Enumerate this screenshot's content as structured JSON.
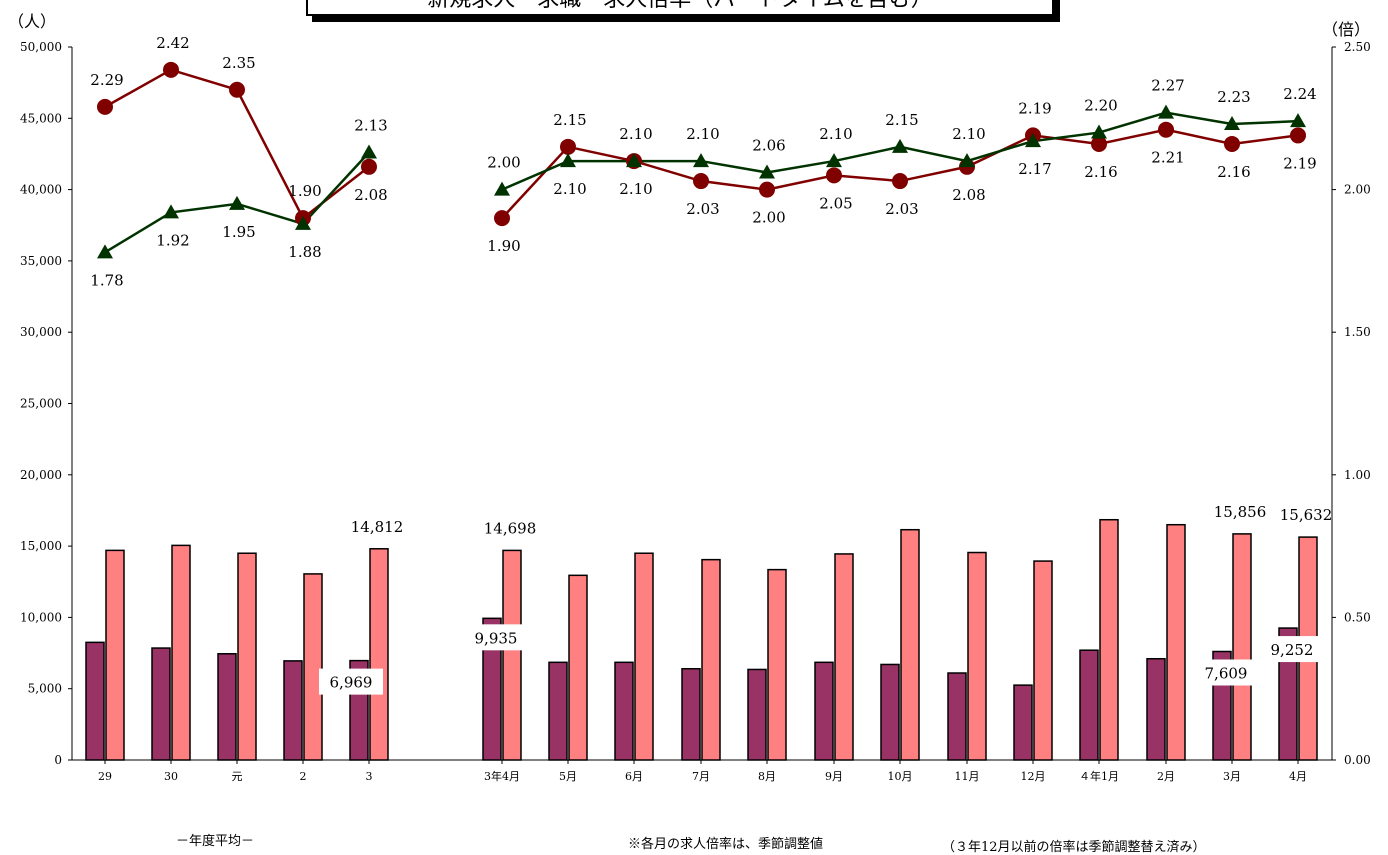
{
  "title": "新規求人・求職・求人倍率（パートタイムを含む）",
  "unit_left": "（人）",
  "unit_right": "（倍）",
  "footer": {
    "fiscal_label": "－年度平均－",
    "note1": "※各月の求人倍率は、季節調整値",
    "note2": "（３年12月以前の倍率は季節調整替え済み）"
  },
  "colors": {
    "bar_dark": "#993366",
    "bar_light": "#FF8080",
    "line_red": "#800000",
    "line_green": "#003300"
  },
  "chart_data": {
    "type": "bar",
    "categories": [
      "29",
      "30",
      "元",
      "2",
      "3",
      "3年4月",
      "5月",
      "6月",
      "7月",
      "8月",
      "9月",
      "10月",
      "11月",
      "12月",
      "４年1月",
      "2月",
      "3月",
      "4月"
    ],
    "y_left": {
      "min": 0,
      "max": 50000,
      "ticks": [
        "0",
        "5,000",
        "10,000",
        "15,000",
        "20,000",
        "25,000",
        "30,000",
        "35,000",
        "40,000",
        "45,000",
        "50,000"
      ]
    },
    "y_right": {
      "min": 0,
      "max": 2.5,
      "ticks": [
        "0.00",
        "0.50",
        "1.00",
        "1.50",
        "2.00",
        "2.50"
      ]
    },
    "bar_dark_values": [
      8250,
      7850,
      7450,
      6950,
      6969,
      9935,
      6850,
      6850,
      6400,
      6350,
      6850,
      6700,
      6100,
      5250,
      7700,
      7100,
      7609,
      9252
    ],
    "bar_light_values": [
      14700,
      15050,
      14500,
      13050,
      14812,
      14698,
      12950,
      14500,
      14050,
      13350,
      14450,
      16150,
      14550,
      13950,
      16850,
      16500,
      15856,
      15632
    ],
    "bar_dark_labels": [
      "",
      "",
      "",
      "",
      "6,969",
      "9,935",
      "",
      "",
      "",
      "",
      "",
      "",
      "",
      "",
      "",
      "",
      "7,609",
      "9,252"
    ],
    "bar_light_labels": [
      "",
      "",
      "",
      "",
      "14,812",
      "14,698",
      "",
      "",
      "",
      "",
      "",
      "",
      "",
      "",
      "",
      "",
      "15,856",
      "15,632"
    ],
    "line_red_values": [
      2.29,
      2.42,
      2.35,
      1.9,
      2.08,
      1.9,
      2.15,
      2.1,
      2.03,
      2.0,
      2.05,
      2.03,
      2.08,
      2.19,
      2.16,
      2.21,
      2.16,
      2.19
    ],
    "line_green_values": [
      1.78,
      1.92,
      1.95,
      1.88,
      2.13,
      2.0,
      2.1,
      2.1,
      2.1,
      2.06,
      2.1,
      2.15,
      2.1,
      2.17,
      2.2,
      2.27,
      2.23,
      2.24
    ],
    "line_red_labels": [
      "2.29",
      "2.42",
      "2.35",
      "1.90",
      "2.08",
      "1.90",
      "2.15",
      "2.10",
      "2.03",
      "2.00",
      "2.05",
      "2.03",
      "2.08",
      "2.19",
      "2.16",
      "2.21",
      "2.16",
      "2.19"
    ],
    "line_green_labels": [
      "1.78",
      "1.92",
      "1.95",
      "1.88",
      "2.13",
      "2.00",
      "2.10",
      "2.10",
      "2.10",
      "2.06",
      "2.10",
      "2.15",
      "2.10",
      "2.17",
      "2.20",
      "2.27",
      "2.23",
      "2.24"
    ]
  }
}
